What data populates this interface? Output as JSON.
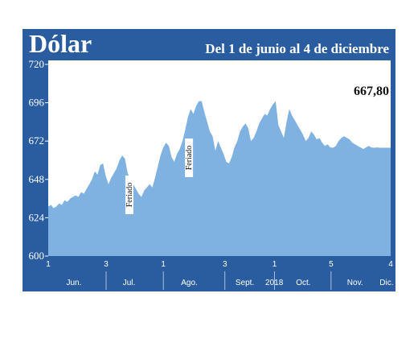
{
  "header": {
    "title": "Dólar",
    "subtitle": "Del 1 de junio al 4 de diciembre"
  },
  "colors": {
    "frame": "#2a5d9f",
    "area": "#7fb2e0",
    "panel": "#ffffff"
  },
  "chart_data": {
    "type": "area",
    "title": "Dólar",
    "subtitle": "Del 1 de junio al 4 de diciembre",
    "ylim": [
      600,
      720
    ],
    "y_ticks": [
      "720",
      "696",
      "672",
      "648",
      "624",
      "600"
    ],
    "x_ticks": [
      "1",
      "3",
      "1",
      "3",
      "1",
      "5",
      "4"
    ],
    "months": [
      "Jun.",
      "Jul.",
      "Ago.",
      "Sept.",
      "2018",
      "Oct.",
      "Nov.",
      "Dic."
    ],
    "last_value_label": "667,80",
    "annotations": [
      {
        "text": "Feriado",
        "x": 0.237
      },
      {
        "text": "Feriado",
        "x": 0.411
      }
    ],
    "grid": false,
    "series": [
      {
        "x": [
          0.0,
          0.008,
          0.016,
          0.024,
          0.032,
          0.04,
          0.048,
          0.056,
          0.064,
          0.072,
          0.08,
          0.088,
          0.096,
          0.104,
          0.112,
          0.12,
          0.128,
          0.136,
          0.144,
          0.152,
          0.16,
          0.168,
          0.176,
          0.184,
          0.192,
          0.2,
          0.208,
          0.216,
          0.224,
          0.232,
          0.24,
          0.248,
          0.256,
          0.264,
          0.272,
          0.28,
          0.288,
          0.296,
          0.304,
          0.312,
          0.32,
          0.328,
          0.336,
          0.344,
          0.352,
          0.36,
          0.368,
          0.376,
          0.384,
          0.392,
          0.4,
          0.408,
          0.416,
          0.424,
          0.432,
          0.44,
          0.448,
          0.456,
          0.464,
          0.472,
          0.48,
          0.488,
          0.496,
          0.504,
          0.512,
          0.52,
          0.528,
          0.536,
          0.544,
          0.552,
          0.56,
          0.568,
          0.576,
          0.584,
          0.592,
          0.6,
          0.608,
          0.616,
          0.624,
          0.632,
          0.64,
          0.648,
          0.656,
          0.664,
          0.672,
          0.68,
          0.688,
          0.696,
          0.704,
          0.712,
          0.72,
          0.728,
          0.736,
          0.744,
          0.752,
          0.76,
          0.768,
          0.776,
          0.784,
          0.792,
          0.8,
          0.808,
          0.816,
          0.824,
          0.832,
          0.84,
          0.848,
          0.856,
          0.864,
          0.872,
          0.88,
          0.888,
          0.896,
          0.904,
          0.912,
          0.92,
          0.928,
          0.936,
          0.944,
          0.952,
          0.96,
          0.968,
          0.976,
          0.984,
          0.992,
          1.0
        ],
        "values": [
          631,
          632,
          630,
          631,
          633,
          632,
          635,
          634,
          636,
          637,
          638,
          637,
          640,
          639,
          642,
          645,
          648,
          653,
          651,
          657,
          658,
          650,
          645,
          649,
          652,
          655,
          660,
          663,
          661,
          652,
          648,
          645,
          642,
          639,
          637,
          641,
          643,
          645,
          643,
          649,
          656,
          663,
          668,
          671,
          669,
          662,
          659,
          664,
          667,
          672,
          679,
          687,
          692,
          689,
          694,
          697,
          697,
          690,
          684,
          678,
          675,
          666,
          672,
          668,
          664,
          659,
          658,
          662,
          668,
          672,
          678,
          681,
          683,
          680,
          672,
          674,
          678,
          683,
          686,
          689,
          688,
          692,
          695,
          697,
          682,
          678,
          674,
          684,
          692,
          688,
          685,
          682,
          679,
          676,
          672,
          674,
          678,
          676,
          673,
          674,
          671,
          669,
          670,
          668,
          667.8,
          669,
          672,
          674,
          675,
          674,
          673,
          671,
          670,
          669,
          668,
          667,
          668,
          669,
          668,
          667.8,
          668,
          667.8,
          667.8,
          667.8,
          667.8,
          667.8
        ]
      }
    ]
  }
}
